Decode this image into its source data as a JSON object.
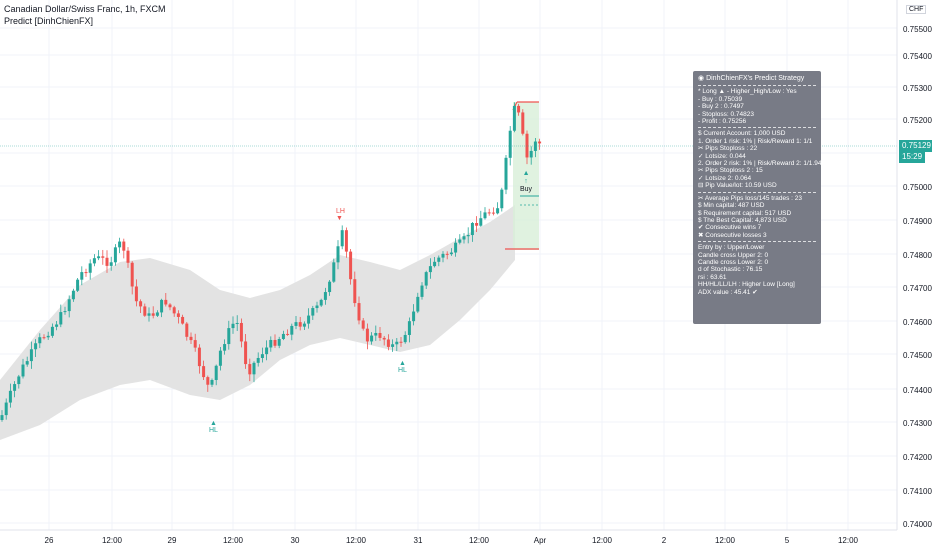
{
  "header": {
    "symbol": "Canadian Dollar/Swiss Franc, 1h, FXCM",
    "indicator": "Predict [DinhChienFX]"
  },
  "axis": {
    "currency": "CHF",
    "price_labels": [
      "0.75500",
      "0.75400",
      "0.75300",
      "0.75200",
      "0.75000",
      "0.74900",
      "0.74800",
      "0.74700",
      "0.74600",
      "0.74500",
      "0.74400",
      "0.74300",
      "0.74200",
      "0.74100",
      "0.74000"
    ],
    "current_price": "0.75129",
    "countdown": "15:29",
    "time_labels": [
      "26",
      "12:00",
      "29",
      "12:00",
      "30",
      "12:00",
      "31",
      "12:00",
      "Apr",
      "12:00",
      "2",
      "12:00",
      "5",
      "12:00"
    ]
  },
  "markers": {
    "lh": "LH",
    "hl_1": "HL",
    "hl_2": "HL",
    "buy": "Buy"
  },
  "panel": {
    "title": "DinhChienFX's Predict Strategy",
    "group1": [
      "* Long ▲ - Higher_High/Low : Yes",
      "- Buy   : 0.75039",
      "- Buy 2  : 0.7497",
      "- Stoploss: 0.74823",
      "- Profit   : 0.75256"
    ],
    "group2": [
      "$ Current Account: 1,000 USD",
      "1. Order 1 risk: 1% | Risk/Reward 1: 1/1",
      "   ✂ Pips Stoploss : 22",
      "   ✓ Lotsize: 0.044",
      "2. Order 2 risk: 1% | Risk/Reward 2: 1/1.94",
      "   ✂ Pips Stoploss 2 : 15",
      "   ✓ Lotsize 2: 0.064",
      "⊟ Pip Value/lot: 10.59 USD"
    ],
    "group3": [
      "✂ Average Pips loss/145 trades : 23",
      "$ Min capital: 487 USD",
      "$ Requirement capital: 517 USD",
      "$ The Best Capital: 4,873 USD",
      "✔ Consecutive wins 7",
      "✖ Consecutive losses 3"
    ],
    "group4": [
      "Entry by : Upper/Lower",
      "Candle cross Upper 2: 0",
      "Candle cross Lower 2: 0",
      "d of Stochastic : 76.15",
      "rsi : 63.61",
      "HH/HL/LL/LH : Higher Low [Long]",
      "ADX value : 45.41 ✔"
    ]
  },
  "colors": {
    "up": "#26a69a",
    "down": "#ef5350",
    "band": "#e0e0e0",
    "panel_bg": "#787b86",
    "price_line": "#26a69a"
  }
}
